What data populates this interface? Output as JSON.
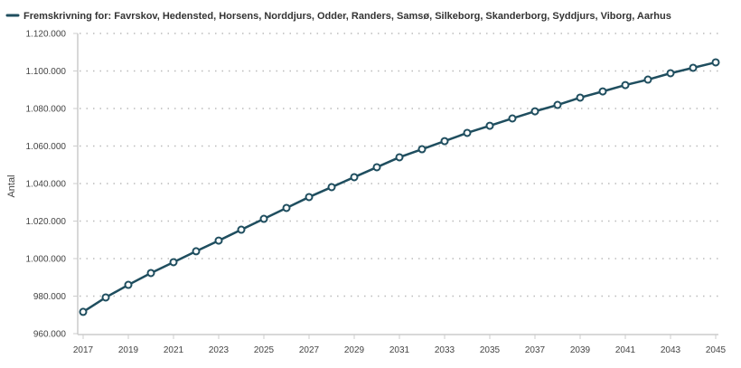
{
  "chart_data": {
    "type": "line",
    "title": "",
    "xlabel": "",
    "ylabel": "Antal",
    "ylim": [
      960000,
      1120000
    ],
    "yticks": [
      "960.000",
      "980.000",
      "1.000.000",
      "1.020.000",
      "1.040.000",
      "1.060.000",
      "1.080.000",
      "1.100.000",
      "1.120.000"
    ],
    "ytick_values": [
      960000,
      980000,
      1000000,
      1020000,
      1040000,
      1060000,
      1080000,
      1100000,
      1120000
    ],
    "xticks": [
      "2017",
      "2019",
      "2021",
      "2023",
      "2025",
      "2027",
      "2029",
      "2031",
      "2033",
      "2035",
      "2037",
      "2039",
      "2041",
      "2043",
      "2045"
    ],
    "grid": "horizontal dotted",
    "legend_position": "top-left",
    "color": "#1f4e5f",
    "x": [
      2017,
      2018,
      2019,
      2020,
      2021,
      2022,
      2023,
      2024,
      2025,
      2026,
      2027,
      2028,
      2029,
      2030,
      2031,
      2032,
      2033,
      2034,
      2035,
      2036,
      2037,
      2038,
      2039,
      2040,
      2041,
      2042,
      2043,
      2044,
      2045
    ],
    "series": [
      {
        "name": "Fremskrivning for: Favrskov, Hedensted, Horsens, Norddjurs, Odder, Randers, Samsø, Silkeborg, Skanderborg, Syddjurs, Viborg, Aarhus",
        "values": [
          971600,
          979300,
          986000,
          992300,
          998100,
          1003900,
          1009600,
          1015400,
          1021200,
          1027000,
          1032800,
          1038100,
          1043400,
          1048700,
          1054000,
          1058300,
          1062600,
          1067000,
          1070800,
          1074700,
          1078500,
          1081900,
          1085800,
          1089100,
          1092500,
          1095400,
          1098800,
          1101700,
          1104600
        ]
      }
    ]
  }
}
